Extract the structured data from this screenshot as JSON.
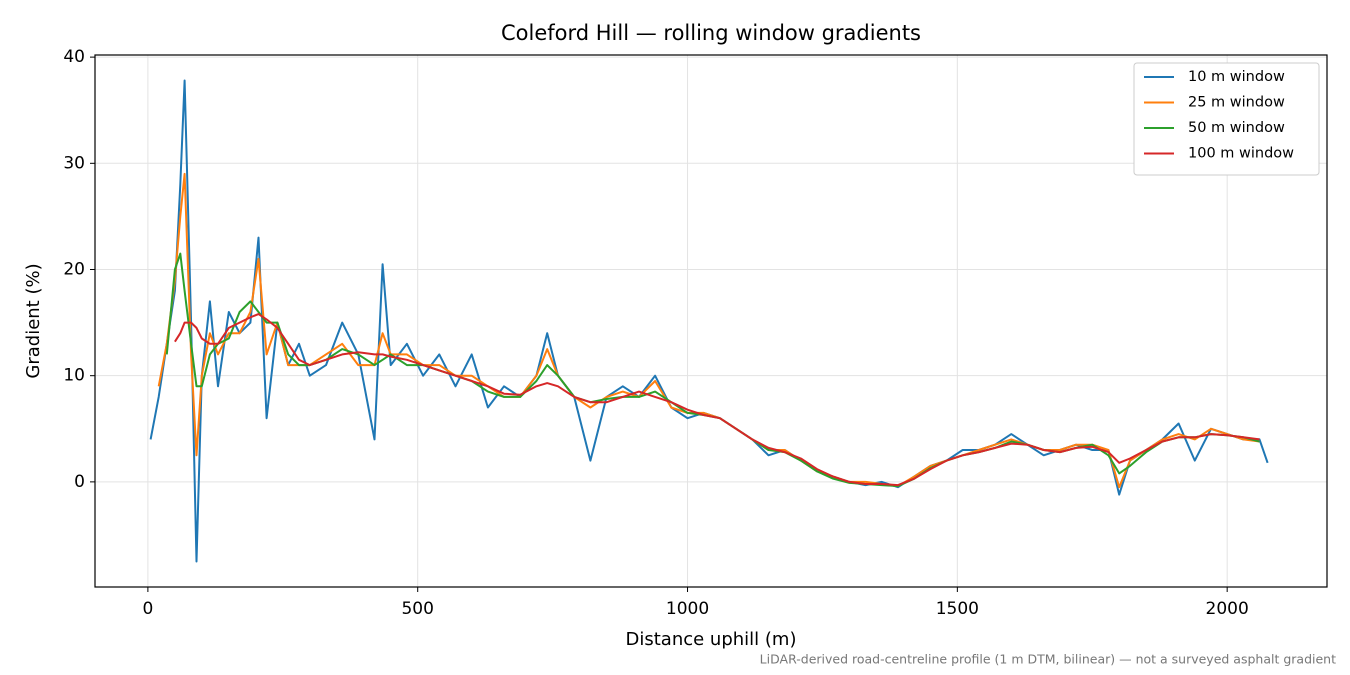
{
  "chart_data": {
    "type": "line",
    "title": "Coleford Hill — rolling window gradients",
    "x_label": "Distance uphill (m)",
    "y_label": "Gradient (%)",
    "footnote": "LiDAR-derived road-centreline profile (1 m DTM, bilinear) — not a surveyed asphalt gradient",
    "x": [
      5,
      20,
      35,
      50,
      60,
      68,
      80,
      90,
      100,
      115,
      130,
      150,
      170,
      190,
      205,
      220,
      240,
      260,
      280,
      300,
      330,
      360,
      390,
      420,
      435,
      450,
      480,
      510,
      540,
      570,
      600,
      630,
      660,
      690,
      720,
      740,
      760,
      790,
      820,
      850,
      880,
      910,
      940,
      970,
      1000,
      1030,
      1060,
      1090,
      1120,
      1150,
      1180,
      1210,
      1240,
      1270,
      1300,
      1330,
      1360,
      1390,
      1420,
      1450,
      1480,
      1510,
      1540,
      1570,
      1600,
      1630,
      1660,
      1690,
      1720,
      1750,
      1780,
      1800,
      1820,
      1850,
      1880,
      1910,
      1940,
      1970,
      2000,
      2030,
      2060,
      2075
    ],
    "series": [
      {
        "name": "10 m window",
        "color": "#1f77b4",
        "values": [
          4,
          8,
          13,
          18,
          28,
          37.8,
          15,
          -7.5,
          10,
          17,
          9,
          16,
          14,
          15,
          23,
          6,
          15,
          11,
          13,
          10,
          11,
          15,
          12,
          4,
          20.5,
          11,
          13,
          10,
          12,
          9,
          12,
          7,
          9,
          8,
          10,
          14,
          10,
          8,
          2,
          8,
          9,
          8,
          10,
          7,
          6,
          6.5,
          6,
          5,
          4,
          2.5,
          3,
          2,
          1,
          0.5,
          0,
          -0.3,
          0,
          -0.5,
          0.5,
          1.5,
          2,
          3,
          3,
          3.5,
          4.5,
          3.5,
          2.5,
          3,
          3.5,
          3,
          3,
          -1.2,
          2,
          3,
          4,
          5.5,
          2,
          5,
          4.5,
          4,
          4,
          1.8
        ]
      },
      {
        "name": "25 m window",
        "color": "#ff7f0e",
        "values": [
          null,
          9,
          13,
          19,
          25,
          29,
          12,
          2.5,
          10,
          14,
          12,
          14,
          14,
          16,
          21,
          12,
          15,
          11,
          11,
          11,
          12,
          13,
          11,
          11,
          14,
          12,
          12,
          11,
          11,
          10,
          10,
          9,
          8,
          8,
          10,
          12.5,
          10,
          8,
          7,
          8,
          8.5,
          8,
          9.5,
          7,
          6.5,
          6.5,
          6,
          5,
          4,
          3,
          3,
          2,
          1,
          0.5,
          0,
          0,
          -0.2,
          -0.4,
          0.5,
          1.5,
          2,
          2.5,
          3,
          3.5,
          4,
          3.5,
          3,
          3,
          3.5,
          3.5,
          3,
          -0.5,
          2,
          3,
          4,
          4.5,
          4,
          5,
          4.5,
          4,
          3.8,
          null
        ]
      },
      {
        "name": "50 m window",
        "color": "#2ca02c",
        "values": [
          null,
          null,
          12,
          20,
          21.5,
          18,
          13,
          9,
          9,
          12,
          13,
          13.5,
          16,
          17,
          16,
          15,
          15,
          12,
          11,
          11,
          11.5,
          12.5,
          12,
          11,
          11.5,
          12,
          11,
          11,
          10.5,
          10,
          9.5,
          8.5,
          8,
          8,
          9.5,
          11,
          10,
          8,
          7.5,
          7.8,
          8,
          8,
          8.5,
          7.5,
          6.5,
          6.3,
          6,
          5,
          4,
          3,
          2.8,
          2,
          1,
          0.3,
          -0.1,
          -0.2,
          -0.3,
          -0.4,
          0.3,
          1.3,
          2,
          2.5,
          2.8,
          3.2,
          3.8,
          3.5,
          3,
          2.8,
          3.2,
          3.5,
          2.5,
          0.8,
          1.5,
          2.8,
          3.8,
          4.2,
          4.2,
          4.5,
          4.4,
          4.2,
          3.8,
          null
        ]
      },
      {
        "name": "100 m window",
        "color": "#d62728",
        "values": [
          null,
          null,
          null,
          13.2,
          14,
          15,
          15,
          14.5,
          13.5,
          13,
          13,
          14.5,
          15,
          15.5,
          15.8,
          15.3,
          14.5,
          13,
          11.5,
          11,
          11.5,
          12,
          12.2,
          12,
          12,
          11.8,
          11.5,
          11,
          10.5,
          10,
          9.5,
          9,
          8.3,
          8.2,
          9,
          9.3,
          9,
          8,
          7.5,
          7.5,
          8,
          8.5,
          8,
          7.5,
          6.8,
          6.3,
          6,
          5,
          4,
          3.2,
          2.8,
          2.2,
          1.2,
          0.5,
          0,
          -0.2,
          -0.2,
          -0.3,
          0.3,
          1.2,
          2,
          2.5,
          2.8,
          3.2,
          3.6,
          3.5,
          3,
          2.8,
          3.2,
          3.3,
          2.8,
          1.8,
          2.2,
          3,
          3.8,
          4.2,
          4.2,
          4.5,
          4.4,
          4.2,
          4,
          null
        ]
      }
    ],
    "xlim": [
      -98,
      2185
    ],
    "ylim": [
      -9.9,
      40.2
    ],
    "xticks": [
      0,
      500,
      1000,
      1500,
      2000
    ],
    "yticks": [
      0,
      10,
      20,
      30,
      40
    ],
    "grid": true,
    "legend": "upper-right"
  }
}
